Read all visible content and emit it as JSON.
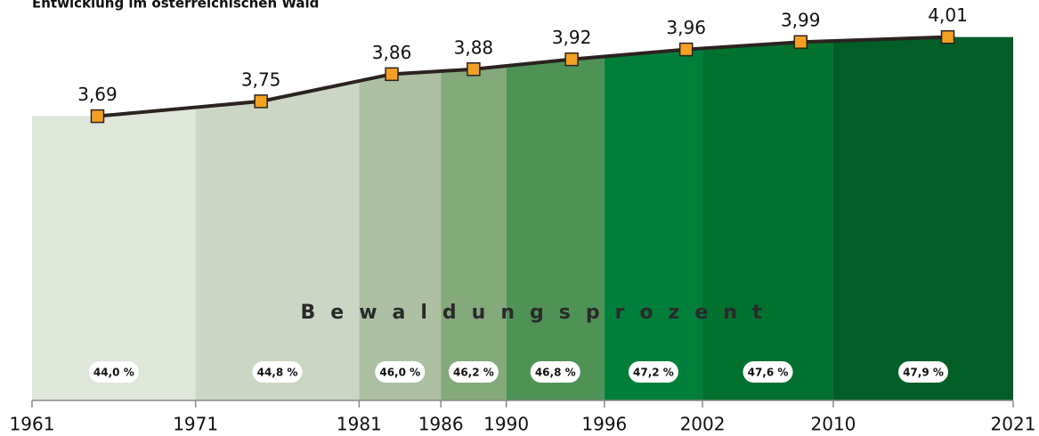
{
  "chart_data": {
    "type": "area",
    "title": "Entwicklung im österreichischen Wald",
    "annotation": "Bewaldungsprozent",
    "x": [
      1965,
      1975,
      1983,
      1988,
      1994,
      2001,
      2008,
      2017
    ],
    "values": [
      3.69,
      3.75,
      3.86,
      3.88,
      3.92,
      3.96,
      3.99,
      4.01
    ],
    "value_labels": [
      "3,69",
      "3,75",
      "3,86",
      "3,88",
      "3,92",
      "3,96",
      "3,99",
      "4,01"
    ],
    "line_color": "#2b2320",
    "marker_color": "#f4a023",
    "xlim": [
      1961,
      2021
    ],
    "xticks": [
      1961,
      1971,
      1981,
      1986,
      1990,
      1996,
      2002,
      2010,
      2021
    ],
    "ylim": [
      2.54,
      4.16
    ],
    "bands": {
      "values": [
        44.0,
        44.8,
        46.0,
        46.2,
        46.8,
        47.2,
        47.6,
        47.9
      ],
      "value_labels": [
        "44,0 %",
        "44,8 %",
        "46,0 %",
        "46,2 %",
        "46,8 %",
        "47,2 %",
        "47,6 %",
        "47,9 %"
      ],
      "colors": [
        "#dfe6da",
        "#cbd7c4",
        "#adc1a2",
        "#84a97b",
        "#4f9256",
        "#007f3a",
        "#00712f",
        "#005e26"
      ]
    }
  }
}
